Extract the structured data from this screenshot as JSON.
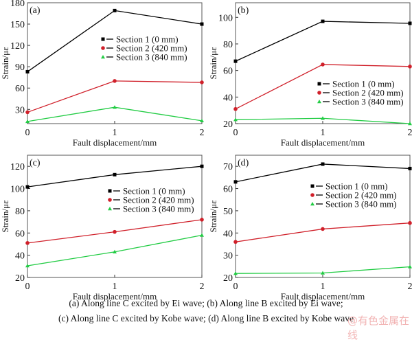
{
  "chart_data": [
    {
      "type": "line",
      "panel_label": "(a)",
      "xlabel": "Fault displacement/mm",
      "ylabel": "Strain/με",
      "x": [
        0,
        1,
        2
      ],
      "xticks": [
        0,
        1,
        2
      ],
      "xlim": [
        0,
        2
      ],
      "ylim": [
        10,
        180
      ],
      "yticks": [
        30,
        60,
        90,
        120,
        150,
        180
      ],
      "legend_position": "center-right",
      "series": [
        {
          "name": "Section 1 (0 mm)",
          "color": "#000000",
          "marker": "square",
          "values": [
            83,
            169,
            150
          ]
        },
        {
          "name": "Section 2 (420 mm)",
          "color": "#d0202a",
          "marker": "circle",
          "values": [
            26,
            70,
            68
          ]
        },
        {
          "name": "Section 3 (840 mm)",
          "color": "#22cc44",
          "marker": "triangle",
          "values": [
            13,
            33,
            14
          ]
        }
      ]
    },
    {
      "type": "line",
      "panel_label": "(b)",
      "xlabel": "Fault displacement/mm",
      "ylabel": "Strain/με",
      "x": [
        0,
        1,
        2
      ],
      "xticks": [
        0,
        1,
        2
      ],
      "xlim": [
        0,
        2
      ],
      "ylim": [
        20,
        111
      ],
      "yticks": [
        20,
        40,
        60,
        80,
        100
      ],
      "legend_position": "lower-right",
      "series": [
        {
          "name": "Section 1 (0 mm)",
          "color": "#000000",
          "marker": "square",
          "values": [
            67,
            97,
            95.5
          ]
        },
        {
          "name": "Section 2 (420 mm)",
          "color": "#d0202a",
          "marker": "circle",
          "values": [
            31,
            64.5,
            63
          ]
        },
        {
          "name": "Section 3 (840 mm)",
          "color": "#22cc44",
          "marker": "triangle",
          "values": [
            23,
            24,
            20
          ]
        }
      ]
    },
    {
      "type": "line",
      "panel_label": "(c)",
      "xlabel": "Fault displacement/mm",
      "ylabel": "Strain/με",
      "x": [
        0,
        1,
        2
      ],
      "xticks": [
        0,
        1,
        2
      ],
      "xlim": [
        0,
        2
      ],
      "ylim": [
        20,
        130
      ],
      "yticks": [
        20,
        40,
        60,
        80,
        100,
        120
      ],
      "legend_position": "upper-right",
      "series": [
        {
          "name": "Section 1 (0 mm)",
          "color": "#000000",
          "marker": "square",
          "values": [
            101.5,
            112.5,
            120
          ]
        },
        {
          "name": "Section 2 (420 mm)",
          "color": "#d0202a",
          "marker": "circle",
          "values": [
            51,
            61,
            72
          ]
        },
        {
          "name": "Section 3 (840 mm)",
          "color": "#22cc44",
          "marker": "triangle",
          "values": [
            30.5,
            43,
            58
          ]
        }
      ]
    },
    {
      "type": "line",
      "panel_label": "(d)",
      "xlabel": "Fault displacement/mm",
      "ylabel": "Strain/με",
      "x": [
        0,
        1,
        2
      ],
      "xticks": [
        0,
        1,
        2
      ],
      "xlim": [
        0,
        2
      ],
      "ylim": [
        20,
        75
      ],
      "yticks": [
        20,
        30,
        40,
        50,
        60,
        70
      ],
      "legend_position": "upper-right",
      "series": [
        {
          "name": "Section 1 (0 mm)",
          "color": "#000000",
          "marker": "square",
          "values": [
            63,
            71,
            69
          ]
        },
        {
          "name": "Section 2 (420 mm)",
          "color": "#d0202a",
          "marker": "circle",
          "values": [
            36,
            41.8,
            44.5
          ]
        },
        {
          "name": "Section 3 (840 mm)",
          "color": "#22cc44",
          "marker": "triangle",
          "values": [
            21.8,
            22,
            24.8
          ]
        }
      ]
    }
  ],
  "caption": {
    "line1": "(a)  Along line C excited by Ei wave; (b) Along line B excited by Ei wave;",
    "line2": "(c) Along line C excited by Kobe wave; (d) Along line B excited by Kobe wave"
  },
  "watermark": "@有色金属在线"
}
